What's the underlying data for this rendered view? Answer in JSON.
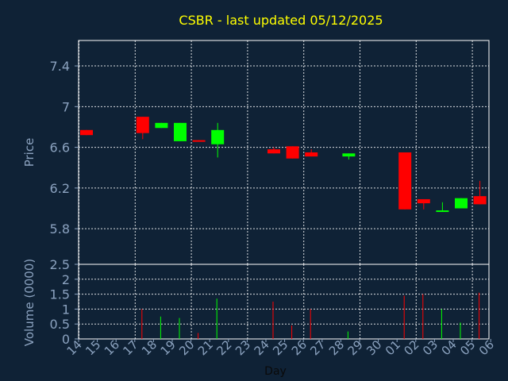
{
  "chart_data": {
    "type": "candlestick",
    "title": "CSBR - last updated 05/12/2025",
    "colors": {
      "background": "#0f2236",
      "plot_border": "#ffffff",
      "grid": "#ffffff",
      "title": "#ffff00",
      "axis_text": "#8ba2bf",
      "up": "#00ff00",
      "down": "#ff0000"
    },
    "price_panel": {
      "ylabel": "Price",
      "ylim": [
        5.45,
        7.65
      ],
      "yticks": [
        5.8,
        6.2,
        6.6,
        7,
        7.4
      ],
      "ytick_labels": [
        "5.8",
        "6.2",
        "6.6",
        "7",
        "7.4"
      ]
    },
    "volume_panel": {
      "ylabel": "Volume (0000)",
      "ylim": [
        0,
        2.5
      ],
      "yticks": [
        0,
        0.5,
        1,
        1.5,
        2,
        2.5
      ],
      "ytick_labels": [
        "0",
        "0.5",
        "1",
        "1.5",
        "2",
        "2.5"
      ]
    },
    "xlabel": "Day",
    "x_ticks": [
      "14",
      "15",
      "16",
      "17",
      "18",
      "19",
      "20",
      "21",
      "22",
      "23",
      "24",
      "25",
      "26",
      "27",
      "28",
      "29",
      "30",
      "01",
      "02",
      "03",
      "04",
      "05",
      "06"
    ],
    "gridlines_at": [
      "14",
      "17",
      "20",
      "23",
      "26",
      "29",
      "02",
      "05"
    ],
    "candles": [
      {
        "day": "14",
        "open": 6.77,
        "close": 6.72,
        "high": 6.77,
        "low": 6.72,
        "volume": 0
      },
      {
        "day": "17",
        "open": 6.9,
        "close": 6.74,
        "high": 6.9,
        "low": 6.68,
        "volume": 1.0
      },
      {
        "day": "18",
        "open": 6.79,
        "close": 6.84,
        "high": 6.84,
        "low": 6.79,
        "volume": 0.75
      },
      {
        "day": "19",
        "open": 6.66,
        "close": 6.84,
        "high": 6.84,
        "low": 6.66,
        "volume": 0.7
      },
      {
        "day": "20",
        "open": 6.67,
        "close": 6.66,
        "high": 6.67,
        "low": 6.66,
        "volume": 0.2
      },
      {
        "day": "21",
        "open": 6.63,
        "close": 6.77,
        "high": 6.84,
        "low": 6.5,
        "volume": 1.35
      },
      {
        "day": "24",
        "open": 6.58,
        "close": 6.54,
        "high": 6.6,
        "low": 6.54,
        "volume": 1.25
      },
      {
        "day": "25",
        "open": 6.61,
        "close": 6.49,
        "high": 6.61,
        "low": 6.49,
        "volume": 0.45
      },
      {
        "day": "26",
        "open": 6.55,
        "close": 6.51,
        "high": 6.58,
        "low": 6.51,
        "volume": 1.0
      },
      {
        "day": "28",
        "open": 6.51,
        "close": 6.54,
        "high": 6.54,
        "low": 6.48,
        "volume": 0.25
      },
      {
        "day": "01",
        "open": 6.55,
        "close": 5.99,
        "high": 6.55,
        "low": 5.99,
        "volume": 1.45
      },
      {
        "day": "02",
        "open": 6.09,
        "close": 6.05,
        "high": 6.09,
        "low": 5.99,
        "volume": 1.5
      },
      {
        "day": "03",
        "open": 5.97,
        "close": 5.98,
        "high": 6.06,
        "low": 5.97,
        "volume": 1.0
      },
      {
        "day": "04",
        "open": 6.0,
        "close": 6.1,
        "high": 6.1,
        "low": 6.0,
        "volume": 0.55
      },
      {
        "day": "05",
        "open": 6.12,
        "close": 6.04,
        "high": 6.27,
        "low": 6.04,
        "volume": 1.55
      }
    ]
  }
}
